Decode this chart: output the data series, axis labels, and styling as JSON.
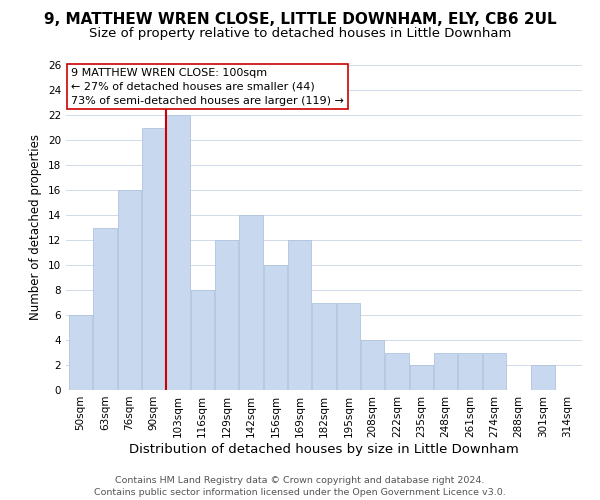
{
  "title": "9, MATTHEW WREN CLOSE, LITTLE DOWNHAM, ELY, CB6 2UL",
  "subtitle": "Size of property relative to detached houses in Little Downham",
  "xlabel": "Distribution of detached houses by size in Little Downham",
  "ylabel": "Number of detached properties",
  "footnote1": "Contains HM Land Registry data © Crown copyright and database right 2024.",
  "footnote2": "Contains public sector information licensed under the Open Government Licence v3.0.",
  "bar_labels": [
    "50sqm",
    "63sqm",
    "76sqm",
    "90sqm",
    "103sqm",
    "116sqm",
    "129sqm",
    "142sqm",
    "156sqm",
    "169sqm",
    "182sqm",
    "195sqm",
    "208sqm",
    "222sqm",
    "235sqm",
    "248sqm",
    "261sqm",
    "274sqm",
    "288sqm",
    "301sqm",
    "314sqm"
  ],
  "bar_values": [
    6,
    13,
    16,
    21,
    22,
    8,
    12,
    14,
    10,
    12,
    7,
    7,
    4,
    3,
    2,
    3,
    3,
    3,
    0,
    2,
    0
  ],
  "bar_color": "#c8d9ef",
  "bar_edge_color": "#b0c4de",
  "grid_color": "#d0daea",
  "background_color": "#ffffff",
  "vline_x_index": 4,
  "vline_color": "#cc0000",
  "annotation_lines": [
    "9 MATTHEW WREN CLOSE: 100sqm",
    "← 27% of detached houses are smaller (44)",
    "73% of semi-detached houses are larger (119) →"
  ],
  "annotation_box_color": "#ffffff",
  "annotation_box_edge_color": "#cc0000",
  "ylim": [
    0,
    26
  ],
  "yticks": [
    0,
    2,
    4,
    6,
    8,
    10,
    12,
    14,
    16,
    18,
    20,
    22,
    24,
    26
  ],
  "title_fontsize": 11,
  "subtitle_fontsize": 9.5,
  "xlabel_fontsize": 9.5,
  "ylabel_fontsize": 8.5,
  "annotation_fontsize": 8,
  "tick_fontsize": 7.5,
  "footnote_fontsize": 6.8
}
